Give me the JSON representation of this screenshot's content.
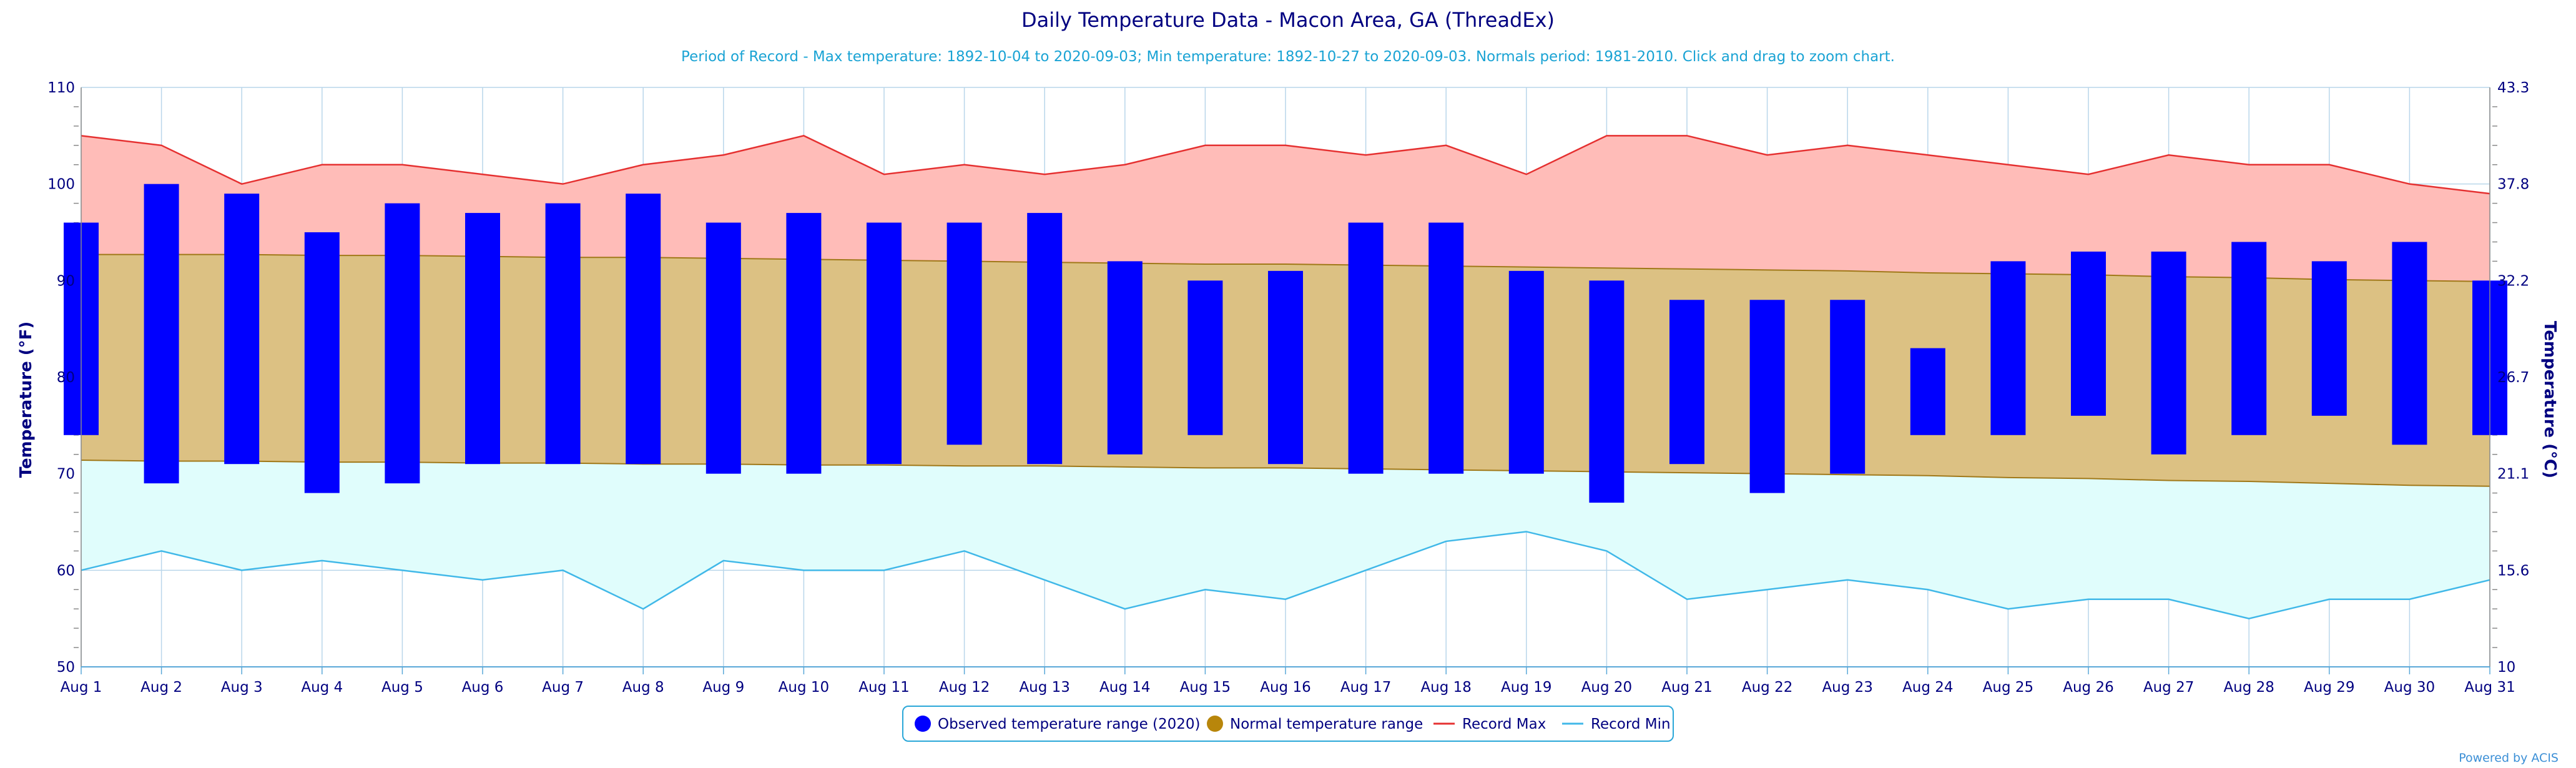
{
  "chart_data": {
    "type": "bar",
    "title": "Daily Temperature Data - Macon Area, GA (ThreadEx)",
    "subtitle": "Period of Record - Max temperature: 1892-10-04 to 2020-09-03; Min temperature: 1892-10-27 to 2020-09-03. Normals period: 1981-2010. Click and drag to zoom chart.",
    "ylabel_left": "Temperature (°F)",
    "ylabel_right": "Temperature (°C)",
    "ylim": [
      50,
      110
    ],
    "yticks_left": [
      "50",
      "60",
      "70",
      "80",
      "90",
      "100",
      "110"
    ],
    "yticks_right": [
      "10",
      "15.6",
      "21.1",
      "26.7",
      "32.2",
      "37.8",
      "43.3"
    ],
    "categories": [
      "Aug 1",
      "Aug 2",
      "Aug 3",
      "Aug 4",
      "Aug 5",
      "Aug 6",
      "Aug 7",
      "Aug 8",
      "Aug 9",
      "Aug 10",
      "Aug 11",
      "Aug 12",
      "Aug 13",
      "Aug 14",
      "Aug 15",
      "Aug 16",
      "Aug 17",
      "Aug 18",
      "Aug 19",
      "Aug 20",
      "Aug 21",
      "Aug 22",
      "Aug 23",
      "Aug 24",
      "Aug 25",
      "Aug 26",
      "Aug 27",
      "Aug 28",
      "Aug 29",
      "Aug 30",
      "Aug 31"
    ],
    "grid": true,
    "legend_position": "bottom",
    "series": [
      {
        "name": "Observed temperature range (2020)",
        "color": "#0000ff",
        "low": [
          74,
          69,
          71,
          68,
          69,
          71,
          71,
          71,
          70,
          70,
          71,
          73,
          71,
          72,
          74,
          71,
          70,
          70,
          70,
          67,
          71,
          68,
          70,
          74,
          74,
          76,
          72,
          74,
          76,
          73,
          74
        ],
        "high": [
          96,
          100,
          99,
          95,
          98,
          97,
          98,
          99,
          96,
          97,
          96,
          96,
          97,
          92,
          90,
          91,
          96,
          96,
          91,
          90,
          88,
          88,
          88,
          83,
          92,
          93,
          93,
          94,
          92,
          94,
          90
        ]
      },
      {
        "name": "Normal temperature range",
        "color": "#b8860b",
        "fill": "#dcc183",
        "low": [
          71.4,
          71.3,
          71.3,
          71.2,
          71.2,
          71.1,
          71.1,
          71.0,
          71.0,
          70.9,
          70.9,
          70.8,
          70.8,
          70.7,
          70.6,
          70.6,
          70.5,
          70.4,
          70.3,
          70.2,
          70.1,
          70.0,
          69.9,
          69.8,
          69.6,
          69.5,
          69.3,
          69.2,
          69.0,
          68.8,
          68.7
        ],
        "high": [
          92.7,
          92.7,
          92.7,
          92.6,
          92.6,
          92.5,
          92.4,
          92.4,
          92.3,
          92.2,
          92.1,
          92.0,
          91.9,
          91.8,
          91.7,
          91.7,
          91.6,
          91.5,
          91.4,
          91.3,
          91.2,
          91.1,
          91.0,
          90.8,
          90.7,
          90.6,
          90.4,
          90.3,
          90.1,
          90.0,
          89.9
        ]
      },
      {
        "name": "Record Max",
        "color": "#e53030",
        "fill": "#ffbcb8",
        "values": [
          105,
          104,
          100,
          102,
          102,
          101,
          100,
          102,
          103,
          105,
          101,
          102,
          101,
          102,
          104,
          104,
          103,
          104,
          101,
          105,
          105,
          103,
          104,
          103,
          102,
          101,
          103,
          102,
          102,
          100,
          99
        ]
      },
      {
        "name": "Record Min",
        "color": "#40b8e8",
        "fill": "#e0fdfc",
        "values": [
          60,
          62,
          60,
          61,
          60,
          59,
          60,
          56,
          61,
          60,
          60,
          62,
          59,
          56,
          58,
          57,
          60,
          63,
          64,
          62,
          57,
          58,
          59,
          58,
          56,
          57,
          57,
          55,
          57,
          57,
          59
        ]
      }
    ]
  },
  "credit": "Powered by ACIS"
}
